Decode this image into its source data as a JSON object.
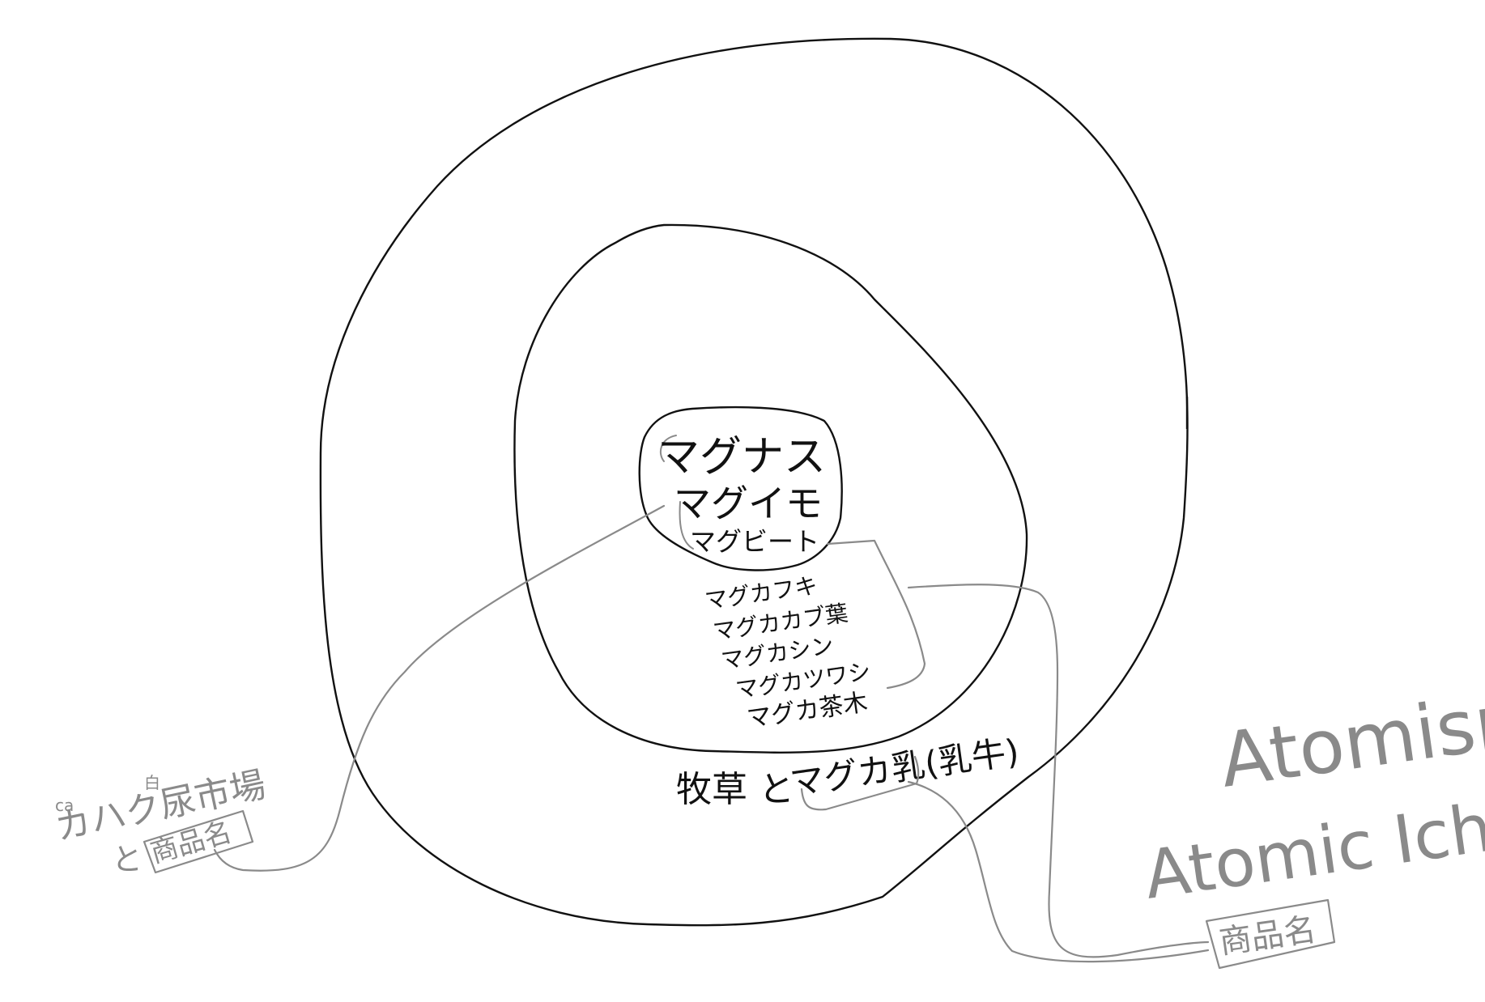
{
  "colors": {
    "ink": "#111111",
    "gray": "#8a8a8a"
  },
  "core": {
    "items": [
      "マグナス",
      "マグイモ",
      "マグビート"
    ]
  },
  "middle": {
    "items": [
      "マグカフキ",
      "マグカカブ葉",
      "マグカシン",
      "マグカツワシ",
      "マグカ茶木"
    ]
  },
  "outer": {
    "label_prefix": "牧草 と",
    "label_main": "マグカ乳(乳牛)"
  },
  "left_annotation": {
    "ruby_ca": "ca",
    "ruby_kanji": "白",
    "line1": "カハク尿市場",
    "line2_prefix": "と",
    "line2_box": "商品名"
  },
  "right_annotation": {
    "title": "Atomism",
    "subtitle": "Atomic Ichiba",
    "box": "商品名"
  }
}
